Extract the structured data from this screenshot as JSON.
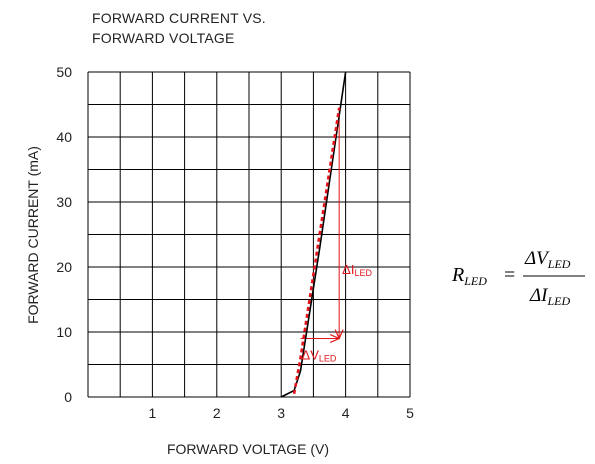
{
  "chart_data": {
    "type": "line",
    "title_lines": [
      "FORWARD CURRENT VS.",
      "FORWARD VOLTAGE"
    ],
    "xlabel": "FORWARD VOLTAGE (V)",
    "ylabel": "FORWARD CURRENT (mA)",
    "xlim": [
      0,
      5
    ],
    "ylim": [
      0,
      50
    ],
    "x_ticks": [
      "1",
      "2",
      "3",
      "4",
      "5"
    ],
    "y_ticks": [
      "0",
      "10",
      "20",
      "30",
      "40",
      "50"
    ],
    "grid": true,
    "series": [
      {
        "style": "solid",
        "color": "#000000",
        "points": [
          [
            3.0,
            0
          ],
          [
            3.2,
            1
          ],
          [
            3.3,
            4
          ],
          [
            3.6,
            23
          ],
          [
            4.0,
            50
          ]
        ]
      },
      {
        "style": "dashed",
        "color": "#e0141a",
        "points": [
          [
            3.2,
            0.5
          ],
          [
            3.3,
            6
          ],
          [
            3.9,
            44.5
          ]
        ]
      }
    ],
    "annotations": {
      "delta_i": {
        "symbol": "ΔI",
        "subscript": "LED",
        "x": 3.9,
        "y_from": 9,
        "y_to": 44.5
      },
      "delta_v": {
        "symbol": "ΔV",
        "subscript": "LED",
        "x_from": 3.3,
        "x_to": 3.9,
        "y": 9
      }
    },
    "formula": {
      "lhs": "R",
      "lhs_sub": "LED",
      "numerator": "ΔV",
      "numerator_sub": "LED",
      "denominator": "ΔI",
      "denominator_sub": "LED"
    }
  }
}
